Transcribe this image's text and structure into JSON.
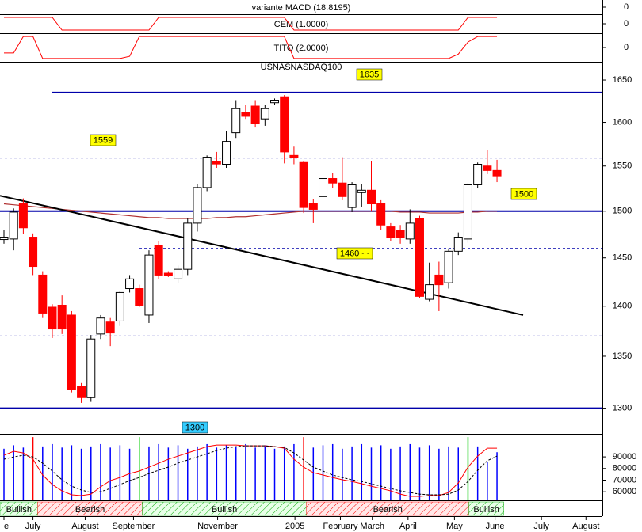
{
  "chart_data": {
    "type": "candlestick",
    "title": "USNASNASDAQ100",
    "xlim": [
      -0.41,
      61.9
    ],
    "xticks": [
      {
        "value": 0,
        "label": "e"
      },
      {
        "value": 3.0,
        "label": "July"
      },
      {
        "value": 8.4,
        "label": "August"
      },
      {
        "value": 13.4,
        "label": "September"
      },
      {
        "value": 22.1,
        "label": "November"
      },
      {
        "value": 30.1,
        "label": "2005"
      },
      {
        "value": 34.8,
        "label": "February"
      },
      {
        "value": 38.1,
        "label": "March"
      },
      {
        "value": 41.8,
        "label": "April"
      },
      {
        "value": 46.6,
        "label": "May"
      },
      {
        "value": 50.8,
        "label": "June"
      },
      {
        "value": 55.6,
        "label": "July"
      },
      {
        "value": 60.2,
        "label": "August"
      }
    ],
    "log_scale": true,
    "ylim": [
      1276,
      1672
    ],
    "yticks": [
      1300,
      1350,
      1400,
      1450,
      1500,
      1550,
      1600,
      1650
    ],
    "up_color": "#ffffff",
    "down_color": "#ff0000",
    "open": [
      1470,
      1470,
      1508,
      1472,
      1432,
      1399,
      1401,
      1391,
      1321,
      1310,
      1372,
      1384,
      1385,
      1418,
      1418,
      1391,
      1463,
      1434,
      1428,
      1438,
      1487,
      1526,
      1555,
      1552,
      1588,
      1612,
      1619,
      1604,
      1623,
      1630,
      1562,
      1554,
      1508,
      1516,
      1536,
      1531,
      1504,
      1521,
      1523,
      1508,
      1483,
      1479,
      1470,
      1492,
      1407,
      1432,
      1424,
      1457,
      1470,
      1529,
      1550,
      1545
    ],
    "high": [
      1480,
      1503,
      1514,
      1476,
      1436,
      1402,
      1411,
      1395,
      1324,
      1371,
      1391,
      1388,
      1416,
      1432,
      1422,
      1458,
      1468,
      1436,
      1442,
      1492,
      1530,
      1562,
      1566,
      1590,
      1626,
      1620,
      1626,
      1620,
      1628,
      1632,
      1572,
      1556,
      1513,
      1540,
      1542,
      1560,
      1532,
      1530,
      1556,
      1512,
      1487,
      1485,
      1502,
      1495,
      1445,
      1446,
      1460,
      1477,
      1531,
      1554,
      1568,
      1557
    ],
    "low": [
      1465,
      1458,
      1475,
      1432,
      1388,
      1368,
      1372,
      1315,
      1305,
      1306,
      1367,
      1360,
      1380,
      1414,
      1399,
      1383,
      1428,
      1430,
      1424,
      1432,
      1478,
      1522,
      1548,
      1548,
      1582,
      1604,
      1594,
      1596,
      1620,
      1553,
      1552,
      1498,
      1487,
      1512,
      1525,
      1512,
      1499,
      1505,
      1500,
      1480,
      1468,
      1465,
      1465,
      1408,
      1405,
      1395,
      1418,
      1453,
      1466,
      1525,
      1541,
      1532
    ],
    "close": [
      1472,
      1499,
      1482,
      1441,
      1393,
      1377,
      1377,
      1318,
      1310,
      1367,
      1388,
      1373,
      1414,
      1428,
      1401,
      1453,
      1432,
      1433,
      1438,
      1487,
      1526,
      1560,
      1553,
      1578,
      1616,
      1607,
      1599,
      1616,
      1626,
      1566,
      1560,
      1504,
      1502,
      1536,
      1531,
      1516,
      1529,
      1523,
      1508,
      1485,
      1472,
      1472,
      1487,
      1410,
      1422,
      1422,
      1457,
      1472,
      1529,
      1552,
      1545,
      1539
    ],
    "moving_average": {
      "color": "#b03030",
      "values": [
        1508,
        1507,
        1506,
        1505,
        1504,
        1503,
        1502,
        1501,
        1500,
        1499,
        1498,
        1497,
        1496,
        1495,
        1494,
        1493,
        1493,
        1492,
        1492,
        1492,
        1492,
        1492,
        1493,
        1493,
        1494,
        1494,
        1495,
        1496,
        1497,
        1498,
        1499,
        1500,
        1500,
        1500,
        1500,
        1500,
        1500,
        1500,
        1500,
        1500,
        1500,
        1499,
        1499,
        1499,
        1498,
        1498,
        1498,
        1498,
        1499,
        1499,
        1500,
        1500
      ]
    },
    "trendline": {
      "color": "#000000",
      "x": [
        -0.41,
        53.7
      ],
      "y": [
        1517,
        1391
      ]
    },
    "levels": [
      {
        "value": 1635,
        "label": "1635",
        "style": "solid",
        "label_color": "#ffff00"
      },
      {
        "value": 1559,
        "label": "1559",
        "style": "dashed",
        "label_color": "#ffff00"
      },
      {
        "value": 1500,
        "label": "1500",
        "style": "solid",
        "label_color": "#ffff00"
      },
      {
        "value": 1460,
        "label": "1460~~",
        "style": "dashed",
        "label_color": "#ffff00"
      },
      {
        "value": 1370,
        "style": "dashed"
      },
      {
        "value": 1300,
        "label": "1300",
        "style": "solid",
        "label_color": "#33ccff"
      }
    ],
    "volume": {
      "ylim": [
        54000,
        109800
      ],
      "yticks": [
        60000,
        70000,
        80000,
        90000
      ],
      "color": "#0000ff",
      "values": [
        97000,
        100000,
        98000,
        107000,
        99000,
        101000,
        98000,
        100000,
        97000,
        99000,
        101000,
        98000,
        100000,
        97000,
        107000,
        99000,
        101000,
        98000,
        100000,
        97000,
        99000,
        101000,
        98000,
        100000,
        99000,
        101000,
        98000,
        100000,
        97000,
        99000,
        101000,
        107000,
        98000,
        100000,
        101000,
        97000,
        99000,
        101000,
        98000,
        100000,
        97000,
        99000,
        101000,
        98000,
        100000,
        97000,
        99000,
        98000,
        107000,
        99000,
        86000,
        94000
      ],
      "colors": {
        "3": "#ff0000",
        "14": "#00cc00",
        "31": "#ff0000",
        "48": "#00cc00"
      }
    },
    "oscillator": [
      {
        "color": "#ff0000",
        "dash": false,
        "values": [
          91400,
          94800,
          93400,
          88000,
          74400,
          66200,
          60800,
          57400,
          56700,
          58000,
          64200,
          69600,
          72300,
          75700,
          77800,
          81200,
          84600,
          88000,
          90700,
          93400,
          96100,
          98800,
          100200,
          100200,
          100200,
          99500,
          99500,
          99500,
          98800,
          97500,
          88000,
          81200,
          76400,
          74400,
          72300,
          70300,
          68900,
          66900,
          64800,
          62800,
          60800,
          58000,
          56000,
          56000,
          56700,
          56700,
          59400,
          67600,
          81200,
          90700,
          97500,
          97500
        ]
      },
      {
        "color": "#000000",
        "dash": true,
        "values": [
          88000,
          90000,
          91400,
          90000,
          84600,
          77800,
          70300,
          64800,
          61500,
          59400,
          60100,
          62800,
          66200,
          69600,
          72300,
          75700,
          78500,
          81200,
          84600,
          87300,
          90000,
          92700,
          95400,
          97500,
          98800,
          99500,
          99500,
          99500,
          98800,
          98200,
          93400,
          87300,
          81200,
          77800,
          74400,
          72300,
          70300,
          68900,
          66900,
          64800,
          62800,
          60800,
          59400,
          58000,
          57400,
          57400,
          58000,
          61500,
          68900,
          78500,
          86700,
          90700
        ]
      }
    ],
    "regimes": [
      {
        "label": "Bullish",
        "start": -0.41,
        "end": 3.5,
        "color": "#00aa00"
      },
      {
        "label": "Bearish",
        "start": 3.5,
        "end": 14.3,
        "color": "#ff0000"
      },
      {
        "label": "Bullish",
        "start": 14.3,
        "end": 31.3,
        "color": "#00aa00"
      },
      {
        "label": "Bearish",
        "start": 31.3,
        "end": 48.1,
        "color": "#ff0000"
      },
      {
        "label": "Bullish",
        "start": 48.1,
        "end": 51.7,
        "color": "#00aa00"
      }
    ],
    "indicators": [
      {
        "title": "variante MACD (18.8195)",
        "ylim": [
          -1,
          1
        ],
        "yticks": [
          0
        ]
      },
      {
        "title": "CEM (1.0000)",
        "ylim": [
          -1.5,
          1.5
        ],
        "yticks": [
          0
        ],
        "color": "#ff0000",
        "values": [
          1,
          1,
          1,
          1,
          1,
          1,
          -1,
          -1,
          -1,
          -1,
          -1,
          -1,
          -1,
          -1,
          -1,
          -1,
          1,
          1,
          1,
          1,
          1,
          1,
          1,
          1,
          1,
          1,
          1,
          1,
          1,
          1,
          -1,
          -1,
          -1,
          -1,
          -1,
          -1,
          -1,
          -1,
          -1,
          -1,
          -1,
          -1,
          -1,
          -1,
          -1,
          -1,
          -1,
          -1,
          1,
          1,
          1,
          1
        ]
      },
      {
        "title": "TITO (2.0000)",
        "ylim": [
          -1.3,
          1.3
        ],
        "yticks": [
          0
        ],
        "color": "#ff0000",
        "values": [
          -0.5,
          -0.5,
          1,
          1,
          -1,
          -1,
          -1,
          -1,
          -1,
          -1,
          -1,
          -1,
          -1,
          -0.8,
          1,
          1,
          1,
          1,
          1,
          1,
          1,
          1,
          1,
          1,
          1,
          1,
          1,
          1,
          1,
          1,
          -1,
          -1,
          -1,
          -1,
          -1,
          -1,
          -1,
          -1,
          -1,
          -1,
          -1,
          -1,
          -1,
          -1,
          -1,
          -1,
          -1,
          -0.6,
          0.5,
          1,
          1,
          1
        ]
      }
    ]
  }
}
